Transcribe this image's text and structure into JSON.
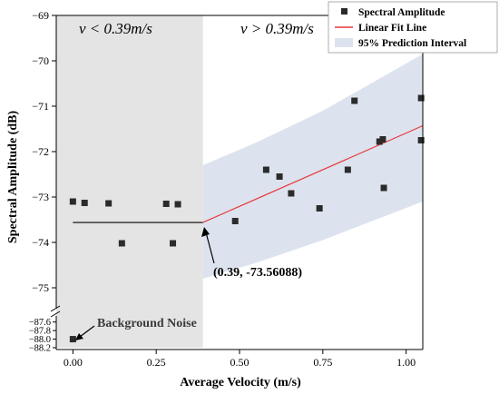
{
  "chart_data": {
    "type": "scatter",
    "xlabel": "Average Velocity (m/s)",
    "ylabel": "Spectral Amplitude (dB)",
    "xlim": [
      -0.05,
      1.05
    ],
    "ylim": [
      -75.5,
      -69
    ],
    "ylim_lower_segment": [
      -88.2,
      -87.5
    ],
    "x_ticks": [
      "0.00",
      "0.25",
      "0.50",
      "0.75",
      "1.00"
    ],
    "y_ticks": [
      "−69",
      "−70",
      "−71",
      "−72",
      "−73",
      "−74",
      "−75"
    ],
    "y_ticks_lower": [
      "−87.6",
      "−87.8",
      "−88.0",
      "−88.2"
    ],
    "threshold_velocity": 0.39,
    "region_labels": {
      "left": "v < 0.39m/s",
      "right": "v > 0.39m/s"
    },
    "series": [
      {
        "name": "Spectral Amplitude",
        "points": [
          [
            0.0,
            -73.1
          ],
          [
            0.035,
            -73.13
          ],
          [
            0.107,
            -73.14
          ],
          [
            0.147,
            -74.02
          ],
          [
            0.28,
            -73.15
          ],
          [
            0.3,
            -74.02
          ],
          [
            0.315,
            -73.16
          ],
          [
            0.487,
            -73.53
          ],
          [
            0.58,
            -72.4
          ],
          [
            0.62,
            -72.55
          ],
          [
            0.655,
            -72.92
          ],
          [
            0.74,
            -73.25
          ],
          [
            0.825,
            -72.4
          ],
          [
            0.845,
            -70.88
          ],
          [
            0.92,
            -71.78
          ],
          [
            0.93,
            -71.73
          ],
          [
            0.933,
            -72.8
          ],
          [
            1.045,
            -70.82
          ],
          [
            1.045,
            -71.75
          ]
        ]
      },
      {
        "name": "Linear Fit Line",
        "line": [
          [
            0.39,
            -73.56088
          ],
          [
            1.05,
            -71.43
          ]
        ]
      },
      {
        "name": "95% Prediction Interval",
        "upper": [
          [
            0.39,
            -72.3
          ],
          [
            0.55,
            -71.8
          ],
          [
            0.75,
            -71.1
          ],
          [
            1.05,
            -69.85
          ]
        ],
        "lower": [
          [
            0.39,
            -74.8
          ],
          [
            0.55,
            -74.45
          ],
          [
            0.75,
            -73.95
          ],
          [
            1.05,
            -73.1
          ]
        ]
      }
    ],
    "constant_segment": {
      "x": [
        0.0,
        0.39
      ],
      "y": -73.56088
    },
    "background_noise": {
      "label": "Background Noise",
      "x": 0.0,
      "y": -88.0
    },
    "annotation": {
      "text": "(0.39, -73.56088)",
      "x": 0.39,
      "y": -73.56088
    },
    "legend": {
      "placement": "top-right",
      "items": [
        "Spectral Amplitude",
        "Linear Fit Line",
        "95% Prediction Interval"
      ]
    },
    "colors": {
      "points": "#2b2b2b",
      "fit_line": "#e8393e",
      "prediction_band": "#dde3ee",
      "low_velocity_region": "#e4e4e4",
      "axis": "#000000"
    }
  }
}
